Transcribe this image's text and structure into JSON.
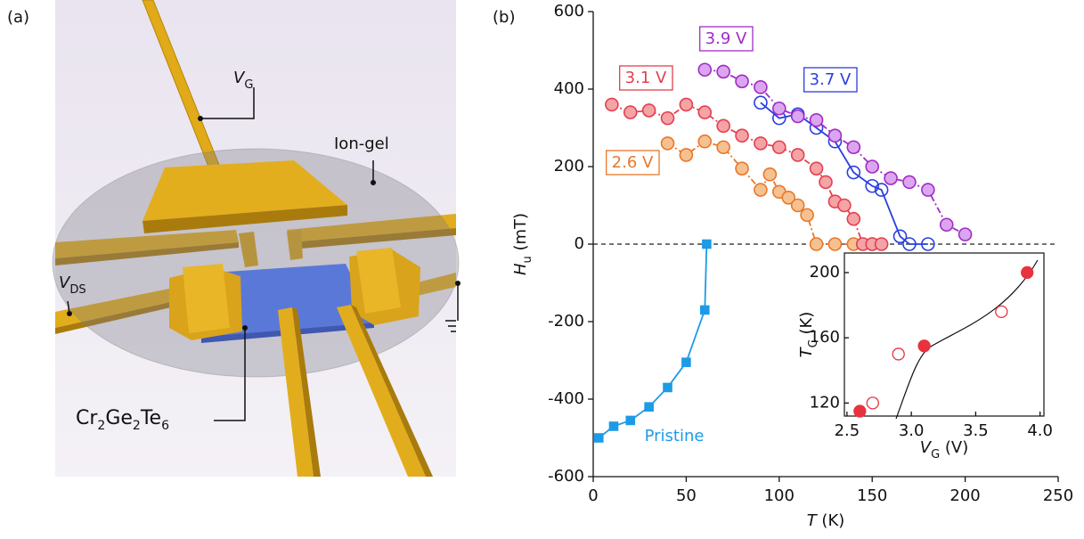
{
  "panel_labels": [
    "(a)",
    "(b)"
  ],
  "diagram": {
    "gate_label": {
      "symbol": "V",
      "sub": "G"
    },
    "iongel_label": "Ion-gel",
    "ds_label": {
      "symbol": "V",
      "sub": "DS"
    },
    "flake_label": [
      "Cr",
      "2",
      "Ge",
      "2",
      "Te",
      "6"
    ]
  },
  "chart_data": [
    {
      "type": "line",
      "xlabel": {
        "symbol": "T",
        "unit": " (K)"
      },
      "ylabel": {
        "symbol": "H",
        "sub": "u",
        "unit": " (mT)"
      },
      "xlim": [
        0,
        250
      ],
      "ylim": [
        -600,
        600
      ],
      "xticks": [
        0,
        50,
        100,
        150,
        200,
        250
      ],
      "yticks": [
        -600,
        -400,
        -200,
        0,
        200,
        400,
        600
      ],
      "reference_line": {
        "y": 0,
        "style": "dashed"
      },
      "series": [
        {
          "name": "Pristine",
          "color": "#1e9be6",
          "marker": "square",
          "marker_fill": "#1e9be6",
          "line": "solid",
          "boxed": false,
          "x": [
            3,
            11,
            20,
            30,
            40,
            50,
            60,
            61
          ],
          "values": [
            -500,
            -470,
            -455,
            -420,
            -370,
            -305,
            -170,
            0
          ]
        },
        {
          "name": "2.6 V",
          "color": "#e8782a",
          "marker": "circle",
          "marker_fill": "#f6c191",
          "line": "dashdot",
          "boxed": true,
          "x": [
            40,
            50,
            60,
            70,
            80,
            90,
            95,
            100,
            105,
            110,
            115,
            120,
            130,
            140,
            150
          ],
          "values": [
            260,
            230,
            265,
            250,
            195,
            140,
            180,
            135,
            120,
            100,
            75,
            0,
            0,
            0,
            0
          ]
        },
        {
          "name": "3.1 V",
          "color": "#e3404e",
          "marker": "circle",
          "marker_fill": "#f4a3a6",
          "line": "dashdot",
          "boxed": true,
          "x": [
            10,
            20,
            30,
            40,
            50,
            60,
            70,
            80,
            90,
            100,
            110,
            120,
            125,
            130,
            135,
            140,
            145,
            150,
            155
          ],
          "values": [
            360,
            340,
            345,
            325,
            360,
            340,
            305,
            280,
            260,
            250,
            230,
            195,
            160,
            110,
            100,
            65,
            0,
            0,
            0
          ]
        },
        {
          "name": "3.7 V",
          "color": "#2a3fe0",
          "marker": "circle",
          "marker_fill": "none",
          "line": "solid",
          "boxed": true,
          "x": [
            90,
            100,
            110,
            120,
            130,
            140,
            150,
            155,
            165,
            170,
            180
          ],
          "values": [
            365,
            325,
            335,
            300,
            265,
            185,
            150,
            140,
            20,
            0,
            0
          ]
        },
        {
          "name": "3.9 V",
          "color": "#a02cc8",
          "marker": "circle",
          "marker_fill": "#dba6ef",
          "line": "dashdot",
          "boxed": true,
          "x": [
            60,
            70,
            80,
            90,
            100,
            110,
            120,
            130,
            140,
            150,
            160,
            170,
            180,
            190,
            200
          ],
          "values": [
            450,
            445,
            420,
            405,
            350,
            330,
            320,
            280,
            250,
            200,
            170,
            160,
            140,
            50,
            25
          ]
        }
      ]
    },
    {
      "type": "scatter",
      "xlabel": {
        "symbol": "V",
        "sub": "G",
        "unit": " (V)"
      },
      "ylabel": {
        "symbol": "T",
        "sub": "C",
        "unit": " (K)"
      },
      "xlim": [
        2.48,
        4.03
      ],
      "ylim": [
        112,
        212
      ],
      "xticks": [
        2.5,
        {
          "value": 3,
          "label": "3.0"
        },
        3.5,
        {
          "value": 4,
          "label": "4.0"
        }
      ],
      "yticks": [
        120,
        160,
        200
      ],
      "series": [
        {
          "color": "#e8323e",
          "marker_fill": "#e8323e",
          "x": [
            2.6,
            3.1,
            3.9
          ],
          "values": [
            115,
            155,
            200
          ]
        },
        {
          "color": "#e8323e",
          "marker_fill": "#ffffff",
          "x": [
            2.7,
            2.9,
            3.7
          ],
          "values": [
            120,
            150,
            176
          ]
        }
      ]
    }
  ]
}
